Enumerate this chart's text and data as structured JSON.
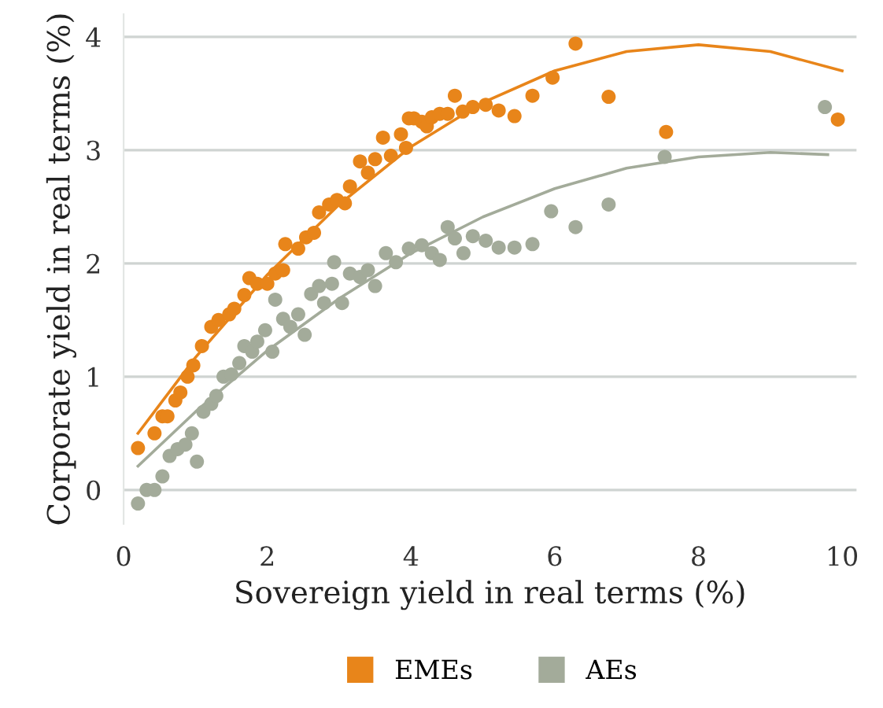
{
  "chart_data": {
    "type": "scatter",
    "xlabel": "Sovereign yield in real terms (%)",
    "ylabel": "Corporate yield in real terms (%)",
    "xlim": [
      0,
      10.2
    ],
    "xticks": [
      0,
      2,
      4,
      6,
      8,
      10
    ],
    "ylim": [
      -0.3,
      4.2
    ],
    "yticks": [
      0,
      1,
      2,
      3,
      4
    ],
    "grid": "y",
    "legend": "bottom",
    "marker": "circle",
    "series": [
      {
        "name": "EMEs",
        "color": "#e8851a",
        "x": [
          0.2,
          0.43,
          0.54,
          0.61,
          0.72,
          0.79,
          0.89,
          0.97,
          1.09,
          1.22,
          1.32,
          1.47,
          1.54,
          1.68,
          1.75,
          1.86,
          2.0,
          2.11,
          2.22,
          2.25,
          2.43,
          2.54,
          2.65,
          2.72,
          2.86,
          2.97,
          3.08,
          3.15,
          3.29,
          3.4,
          3.5,
          3.61,
          3.72,
          3.86,
          3.97,
          3.93,
          4.04,
          4.15,
          4.22,
          4.29,
          4.4,
          4.51,
          4.61,
          4.72,
          4.86,
          5.04,
          5.22,
          5.44,
          5.69,
          5.97,
          6.29,
          6.75,
          7.55,
          9.94
        ],
        "values": [
          0.37,
          0.5,
          0.65,
          0.65,
          0.79,
          0.86,
          1.0,
          1.1,
          1.27,
          1.44,
          1.5,
          1.55,
          1.6,
          1.72,
          1.87,
          1.82,
          1.82,
          1.91,
          1.94,
          2.17,
          2.13,
          2.23,
          2.27,
          2.45,
          2.52,
          2.56,
          2.53,
          2.68,
          2.9,
          2.8,
          2.92,
          3.11,
          2.95,
          3.14,
          3.28,
          3.02,
          3.28,
          3.25,
          3.21,
          3.29,
          3.32,
          3.32,
          3.48,
          3.34,
          3.38,
          3.4,
          3.35,
          3.3,
          3.48,
          3.64,
          3.94,
          3.47,
          3.16,
          3.27
        ]
      },
      {
        "name": "AEs",
        "color": "#a3ab9a",
        "x": [
          0.2,
          0.32,
          0.43,
          0.54,
          0.64,
          0.75,
          0.86,
          0.95,
          1.02,
          1.11,
          1.22,
          1.29,
          1.39,
          1.5,
          1.61,
          1.68,
          1.79,
          1.86,
          1.97,
          2.07,
          2.11,
          2.22,
          2.32,
          2.43,
          2.52,
          2.61,
          2.72,
          2.79,
          2.9,
          2.93,
          3.04,
          3.15,
          3.29,
          3.4,
          3.5,
          3.65,
          3.79,
          3.97,
          4.15,
          4.29,
          4.4,
          4.51,
          4.61,
          4.73,
          4.86,
          5.04,
          5.22,
          5.44,
          5.69,
          5.95,
          6.29,
          6.75,
          7.53,
          9.76
        ],
        "values": [
          -0.12,
          0.0,
          0.0,
          0.12,
          0.3,
          0.36,
          0.4,
          0.5,
          0.25,
          0.69,
          0.76,
          0.83,
          1.0,
          1.02,
          1.12,
          1.27,
          1.22,
          1.31,
          1.41,
          1.22,
          1.68,
          1.51,
          1.44,
          1.55,
          1.37,
          1.73,
          1.8,
          1.65,
          1.82,
          2.01,
          1.65,
          1.91,
          1.88,
          1.94,
          1.8,
          2.09,
          2.01,
          2.13,
          2.16,
          2.09,
          2.03,
          2.32,
          2.22,
          2.09,
          2.24,
          2.2,
          2.14,
          2.14,
          2.17,
          2.46,
          2.32,
          2.52,
          2.94,
          3.38
        ]
      },
      {
        "type": "line",
        "color": "#e8851a",
        "marker": "none",
        "x": [
          0.2,
          1,
          2,
          3,
          4,
          5,
          6,
          7,
          8,
          9,
          10
        ],
        "values": [
          0.5,
          1.17,
          1.9,
          2.52,
          3.03,
          3.42,
          3.7,
          3.87,
          3.93,
          3.87,
          3.7
        ]
      },
      {
        "type": "line",
        "color": "#a3ab9a",
        "marker": "none",
        "x": [
          0.2,
          1,
          2,
          3,
          4,
          5,
          6,
          7,
          8,
          9,
          9.8
        ],
        "values": [
          0.21,
          0.69,
          1.23,
          1.69,
          2.09,
          2.41,
          2.66,
          2.84,
          2.94,
          2.98,
          2.96
        ]
      }
    ]
  }
}
